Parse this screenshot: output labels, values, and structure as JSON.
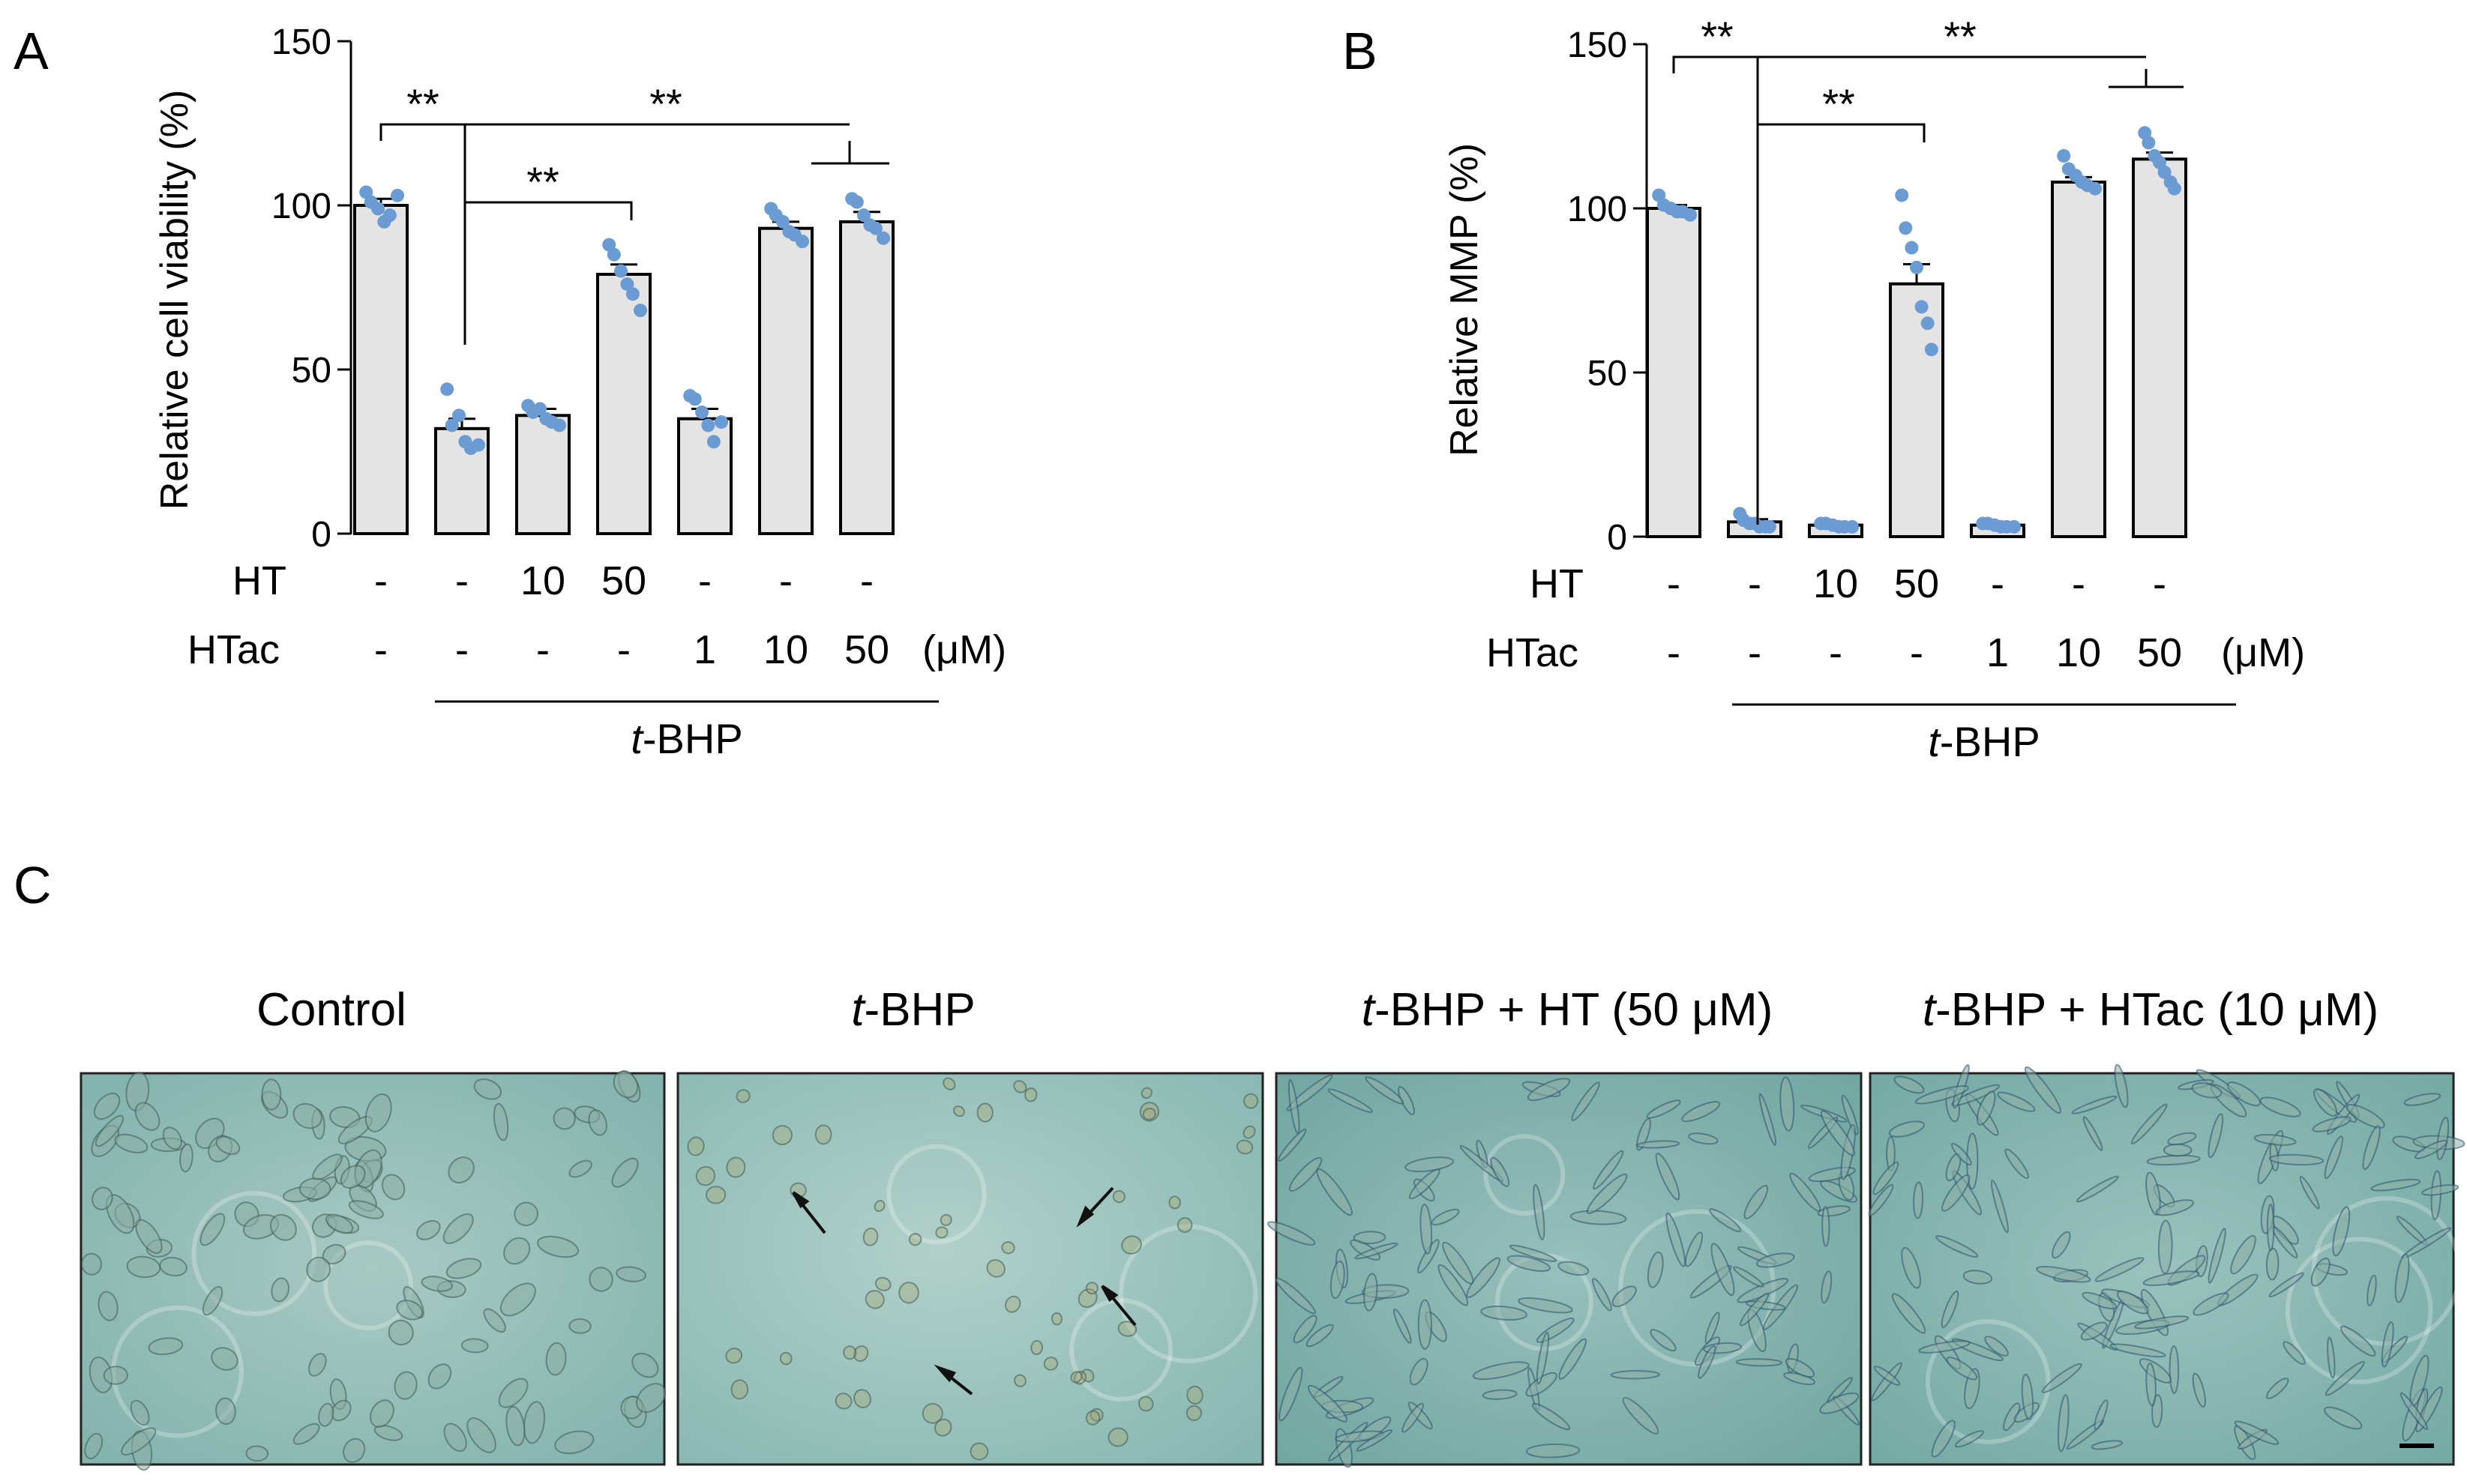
{
  "panel_labels": {
    "a": "A",
    "b": "B",
    "c": "C"
  },
  "colors": {
    "bar_fill": "#e4e4e4",
    "dot": "#6b9bd3",
    "axis": "#000000"
  },
  "conditions": {
    "ht_label": "HT",
    "htac_label": "HTac",
    "ht_values": [
      "-",
      "-",
      "10",
      "50",
      "-",
      "-",
      "-"
    ],
    "htac_values": [
      "-",
      "-",
      "-",
      "-",
      "1",
      "10",
      "50"
    ],
    "unit": "(μM)",
    "treatment_italic": "t",
    "treatment_rest": "-BHP"
  },
  "chart_data": [
    {
      "type": "bar",
      "panel": "A",
      "ylabel": "Relative cell viability (%)",
      "ylim": [
        0,
        150
      ],
      "yticks": [
        "0",
        "50",
        "100",
        "150"
      ],
      "values": [
        100,
        32,
        36,
        79,
        35,
        93,
        95
      ],
      "errors": [
        2,
        3,
        2,
        3,
        3,
        2,
        3
      ],
      "points": [
        [
          104,
          101,
          99,
          95,
          97,
          103
        ],
        [
          44,
          33,
          36,
          28,
          26,
          27
        ],
        [
          39,
          37,
          38,
          35,
          34,
          33
        ],
        [
          88,
          85,
          80,
          76,
          73,
          68
        ],
        [
          42,
          41,
          37,
          33,
          28,
          34
        ],
        [
          99,
          97,
          95,
          92,
          91,
          89
        ],
        [
          102,
          101,
          97,
          94,
          93,
          90
        ]
      ],
      "significance": "**"
    },
    {
      "type": "bar",
      "panel": "B",
      "ylabel": "Relative MMP (%)",
      "ylim": [
        0,
        150
      ],
      "yticks": [
        "0",
        "50",
        "100",
        "150"
      ],
      "values": [
        100,
        4.5,
        3.5,
        77,
        3.5,
        108,
        115
      ],
      "errors": [
        1,
        0.8,
        0.5,
        6,
        0.5,
        1.5,
        2
      ],
      "points": [
        [
          104,
          101,
          100,
          99,
          99,
          98
        ],
        [
          7,
          5,
          4,
          4,
          3,
          3,
          3
        ],
        [
          4,
          4,
          3.5,
          3,
          3,
          3
        ],
        [
          104,
          94,
          88,
          82,
          70,
          65,
          57
        ],
        [
          4,
          4,
          3.5,
          3,
          3,
          3
        ],
        [
          116,
          112,
          110,
          108,
          107,
          106
        ],
        [
          123,
          120,
          116,
          114,
          111,
          108,
          106
        ]
      ],
      "significance": "**"
    }
  ],
  "micrographs": {
    "titles": [
      {
        "italic": "",
        "rest": "Control"
      },
      {
        "italic": "t",
        "rest": "-BHP"
      },
      {
        "italic": "t",
        "rest": "-BHP + HT (50 μM)"
      },
      {
        "italic": "t",
        "rest": "-BHP + HTac (10 μM)"
      }
    ]
  }
}
